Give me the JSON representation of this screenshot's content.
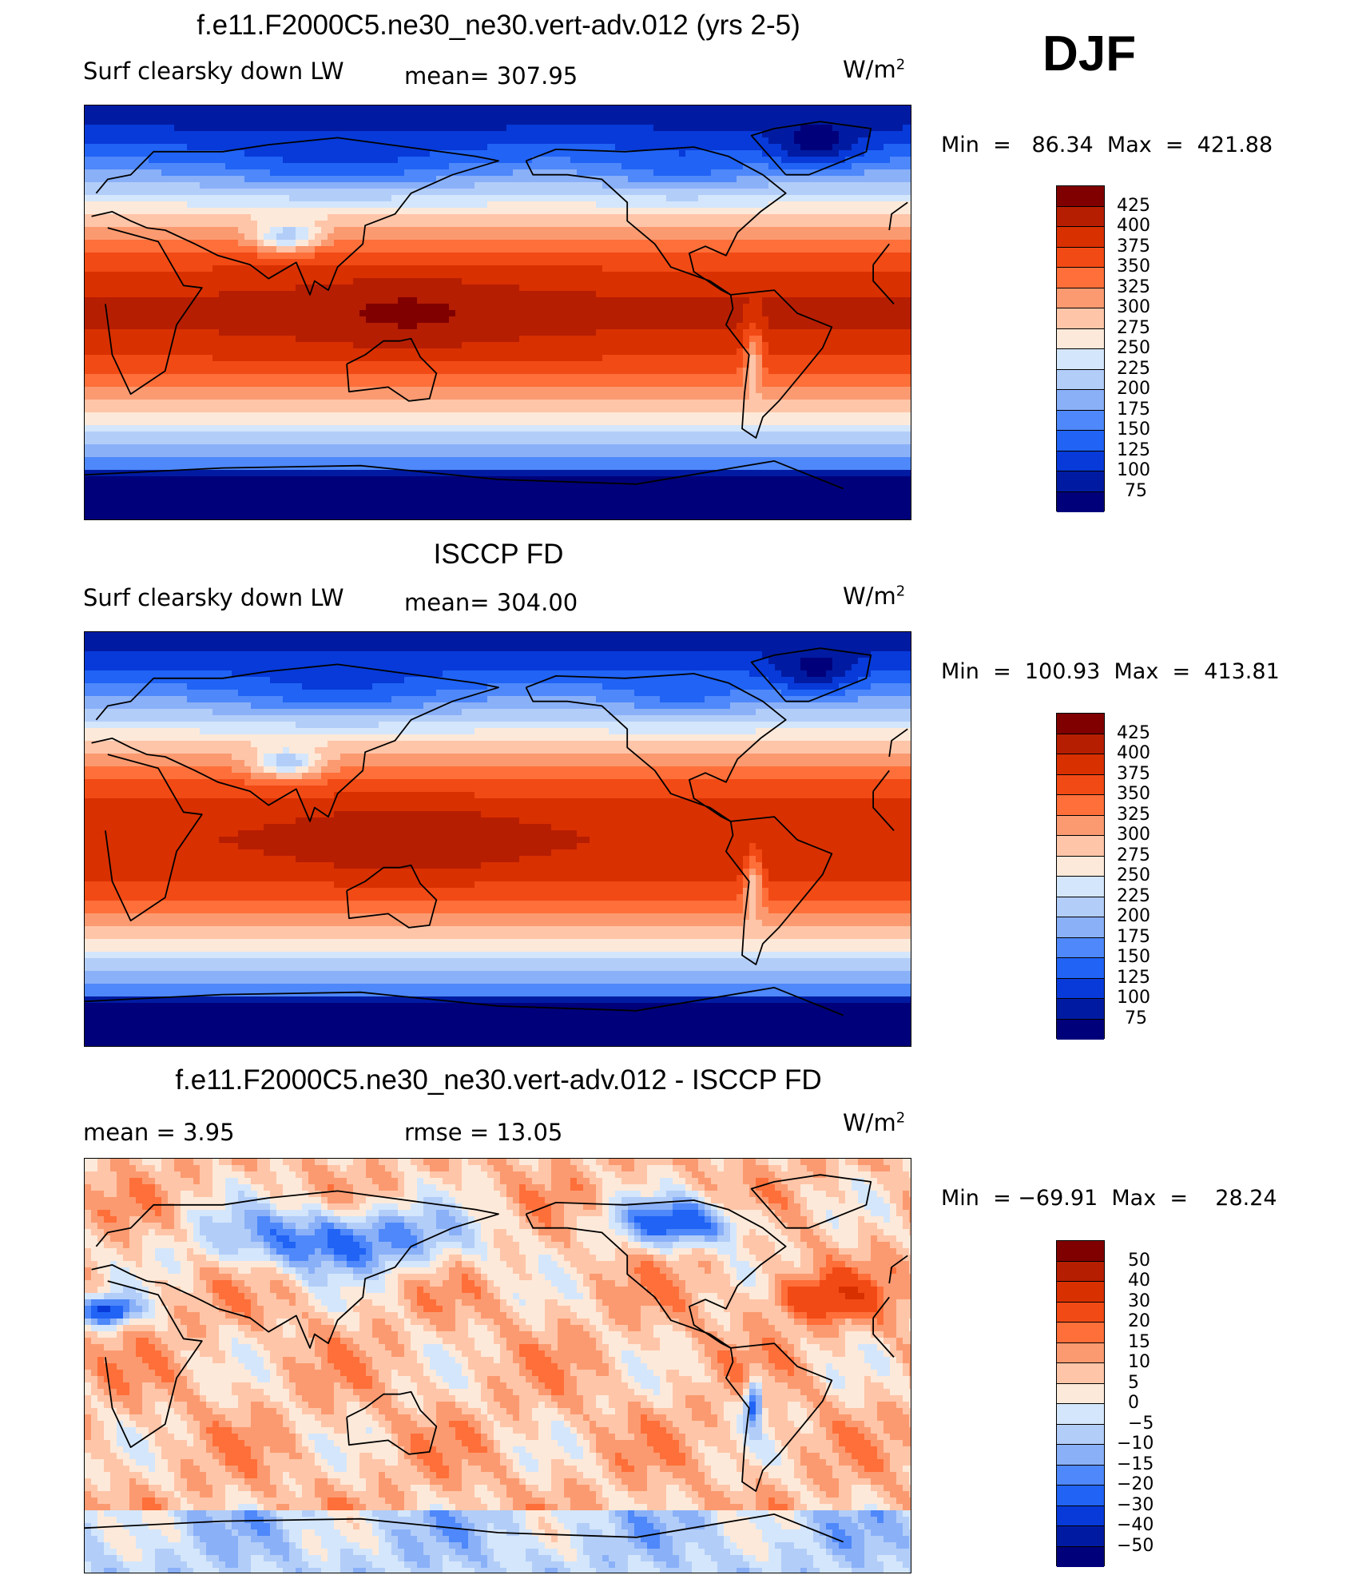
{
  "season": "DJF",
  "panels": [
    {
      "title": "f.e11.F2000C5.ne30_ne30.vert-adv.012 (yrs 2-5)",
      "left_label": "Surf  clearsky  down  LW",
      "mid_label": "mean=  307.95",
      "units": "W/m",
      "units_sup": "2",
      "minmax": "Min  =   86.34  Max  =  421.88",
      "colorbar": {
        "labels": [
          "425",
          "400",
          "375",
          "350",
          "325",
          "300",
          "275",
          "250",
          "225",
          "200",
          "175",
          "150",
          "125",
          "100",
          "75"
        ],
        "colors": [
          "#800000",
          "#b61e02",
          "#d93000",
          "#f24a15",
          "#ff6f3a",
          "#fb9a70",
          "#ffc5a8",
          "#fde9d9",
          "#d4e6fb",
          "#b2cdf8",
          "#8ab0f8",
          "#4e88fa",
          "#2063f5",
          "#073ad9",
          "#001ba2",
          "#00007a"
        ]
      },
      "field": "model"
    },
    {
      "title": "ISCCP FD",
      "left_label": "Surf  clearsky  down  LW",
      "mid_label": "mean=  304.00",
      "units": "W/m",
      "units_sup": "2",
      "minmax": "Min  =  100.93  Max  =  413.81",
      "colorbar": {
        "labels": [
          "425",
          "400",
          "375",
          "350",
          "325",
          "300",
          "275",
          "250",
          "225",
          "200",
          "175",
          "150",
          "125",
          "100",
          "75"
        ],
        "colors": [
          "#800000",
          "#b61e02",
          "#d93000",
          "#f24a15",
          "#ff6f3a",
          "#fb9a70",
          "#ffc5a8",
          "#fde9d9",
          "#d4e6fb",
          "#b2cdf8",
          "#8ab0f8",
          "#4e88fa",
          "#2063f5",
          "#073ad9",
          "#001ba2",
          "#00007a"
        ]
      },
      "field": "obs"
    },
    {
      "title": "f.e11.F2000C5.ne30_ne30.vert-adv.012 - ISCCP FD",
      "left_label": "mean  =      3.95",
      "mid_label": "rmse  =    13.05",
      "units": "W/m",
      "units_sup": "2",
      "minmax": "Min  = −69.91  Max  =    28.24",
      "colorbar": {
        "labels": [
          "50",
          "40",
          "30",
          "20",
          "15",
          "10",
          "5",
          "0",
          "−5",
          "−10",
          "−15",
          "−20",
          "−30",
          "−40",
          "−50"
        ],
        "colors": [
          "#800000",
          "#b61e02",
          "#d93000",
          "#f24a15",
          "#ff6f3a",
          "#fb9a70",
          "#ffc5a8",
          "#fde9d9",
          "#d4e6fb",
          "#b2cdf8",
          "#8ab0f8",
          "#4e88fa",
          "#2063f5",
          "#073ad9",
          "#001ba2",
          "#00007a"
        ]
      },
      "field": "diff"
    }
  ]
}
